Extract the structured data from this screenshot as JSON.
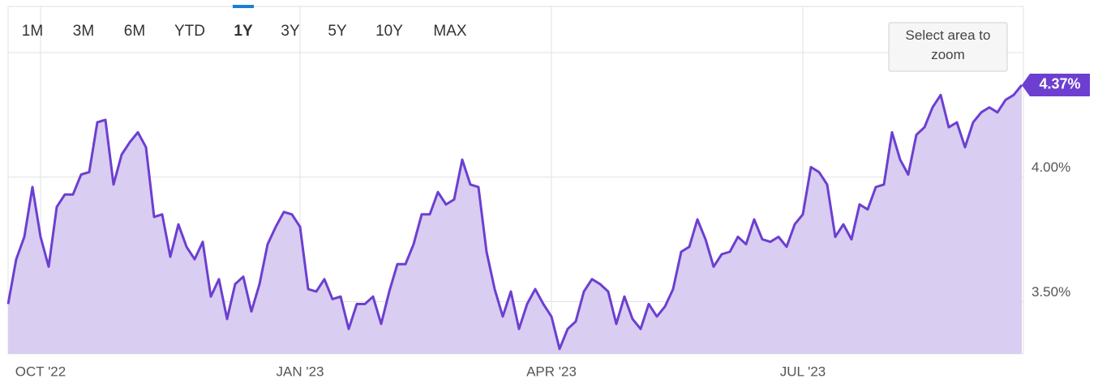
{
  "toolbar": {
    "ranges": [
      "1M",
      "3M",
      "6M",
      "YTD",
      "1Y",
      "3Y",
      "5Y",
      "10Y",
      "MAX"
    ],
    "selected": 4
  },
  "zoom_hint": "Select area to zoom",
  "chart_data": {
    "type": "area",
    "categories": [
      null,
      null,
      null,
      null,
      "OCT '22",
      null,
      null,
      null,
      null,
      null,
      null,
      null,
      null,
      null,
      null,
      null,
      null,
      null,
      null,
      null,
      null,
      null,
      null,
      null,
      null,
      null,
      null,
      null,
      null,
      null,
      null,
      null,
      null,
      null,
      null,
      null,
      "JAN '23",
      null,
      null,
      null,
      null,
      null,
      null,
      null,
      null,
      null,
      null,
      null,
      null,
      null,
      null,
      null,
      null,
      null,
      null,
      null,
      null,
      null,
      null,
      null,
      null,
      null,
      null,
      null,
      null,
      null,
      null,
      "APR '23",
      null,
      null,
      null,
      null,
      null,
      null,
      null,
      null,
      null,
      null,
      null,
      null,
      null,
      null,
      null,
      null,
      null,
      null,
      null,
      null,
      null,
      null,
      null,
      null,
      null,
      null,
      null,
      null,
      null,
      null,
      "JUL '23",
      null,
      null,
      null,
      null,
      null,
      null,
      null,
      null,
      null,
      null,
      null,
      null,
      null,
      null,
      null,
      null,
      null,
      null,
      null,
      null,
      null,
      null,
      null,
      null,
      null,
      null,
      null
    ],
    "values": [
      3.49,
      3.67,
      3.76,
      3.96,
      3.76,
      3.64,
      3.88,
      3.93,
      3.93,
      4.01,
      4.02,
      4.22,
      4.23,
      3.97,
      4.09,
      4.14,
      4.18,
      4.12,
      3.84,
      3.85,
      3.68,
      3.81,
      3.72,
      3.67,
      3.74,
      3.52,
      3.59,
      3.43,
      3.57,
      3.6,
      3.46,
      3.57,
      3.73,
      3.8,
      3.86,
      3.85,
      3.8,
      3.55,
      3.54,
      3.59,
      3.51,
      3.52,
      3.39,
      3.49,
      3.49,
      3.52,
      3.41,
      3.54,
      3.65,
      3.65,
      3.73,
      3.85,
      3.85,
      3.94,
      3.89,
      3.91,
      4.07,
      3.97,
      3.96,
      3.7,
      3.55,
      3.44,
      3.54,
      3.39,
      3.49,
      3.55,
      3.49,
      3.44,
      3.31,
      3.39,
      3.42,
      3.54,
      3.59,
      3.57,
      3.54,
      3.41,
      3.52,
      3.43,
      3.39,
      3.49,
      3.44,
      3.48,
      3.55,
      3.7,
      3.72,
      3.83,
      3.75,
      3.64,
      3.69,
      3.7,
      3.76,
      3.73,
      3.83,
      3.75,
      3.74,
      3.76,
      3.72,
      3.81,
      3.85,
      4.04,
      4.02,
      3.97,
      3.76,
      3.81,
      3.75,
      3.89,
      3.87,
      3.96,
      3.97,
      4.18,
      4.07,
      4.01,
      4.17,
      4.2,
      4.28,
      4.33,
      4.2,
      4.22,
      4.12,
      4.22,
      4.26,
      4.28,
      4.26,
      4.31,
      4.33,
      4.37
    ],
    "value_labels": [
      null,
      null,
      null,
      null,
      null,
      null,
      null,
      null,
      null,
      null,
      null,
      null,
      null,
      null,
      null,
      null,
      null,
      null,
      null,
      null,
      null,
      null,
      null,
      null,
      null,
      null,
      null,
      null,
      null,
      null,
      null,
      null,
      null,
      null,
      null,
      null,
      null,
      null,
      null,
      null,
      null,
      null,
      null,
      null,
      null,
      null,
      null,
      null,
      null,
      null,
      null,
      null,
      null,
      null,
      null,
      null,
      null,
      null,
      null,
      null,
      null,
      null,
      null,
      null,
      null,
      null,
      null,
      null,
      null,
      null,
      null,
      null,
      null,
      null,
      null,
      null,
      null,
      null,
      null,
      null,
      null,
      null,
      null,
      null,
      null,
      null,
      null,
      null,
      null,
      null,
      null,
      null,
      null,
      null,
      null,
      null,
      null,
      null,
      null,
      null,
      null,
      null,
      null,
      null,
      null,
      null,
      null,
      null,
      null,
      null,
      null,
      null,
      null,
      null,
      null,
      null,
      null,
      null,
      null,
      null,
      null,
      null,
      null,
      null,
      null,
      "4.37%"
    ],
    "color": "#6c3fd0",
    "fill_color": "#d9cdf1",
    "ylim": [
      3.29,
      4.5
    ],
    "yticks": [
      {
        "value": 3.5,
        "label": "3.50%"
      },
      {
        "value": 4.0,
        "label": "4.00%"
      }
    ],
    "grid": true
  }
}
